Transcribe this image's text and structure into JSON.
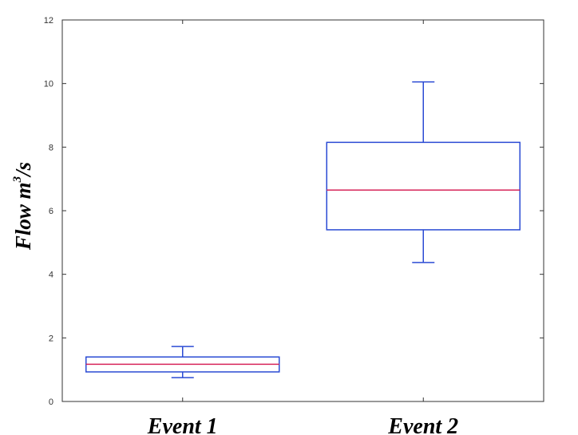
{
  "chart_data": {
    "type": "boxplot",
    "ylabel": {
      "base": "Flow m",
      "superscript": "3",
      "suffix": "/s"
    },
    "ylim": [
      0,
      12
    ],
    "yticks": [
      0,
      2,
      4,
      6,
      8,
      10,
      12
    ],
    "categories": [
      "Event 1",
      "Event 2"
    ],
    "boxes": [
      {
        "category": "Event 1",
        "min": 0.75,
        "q1": 0.93,
        "median": 1.17,
        "q3": 1.4,
        "max": 1.73
      },
      {
        "category": "Event 2",
        "min": 4.37,
        "q1": 5.4,
        "median": 6.65,
        "q3": 8.15,
        "max": 10.05
      }
    ],
    "grid": false,
    "colors": {
      "box": "#2b4bd4",
      "median": "#d6245a",
      "axis": "#333333"
    }
  }
}
